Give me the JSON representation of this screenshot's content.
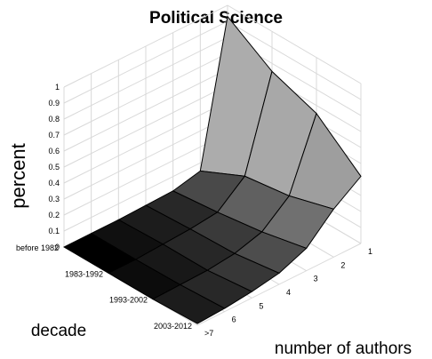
{
  "chart_data": {
    "type": "surface",
    "title": "Political Science",
    "zlabel": "percent",
    "ylabel": "decade",
    "xlabel": "number of authors",
    "decades": [
      "before 1982",
      "1983-1992",
      "1993-2002",
      "2003-2012"
    ],
    "authors": [
      "1",
      "2",
      "3",
      "4",
      "5",
      "6",
      ">7"
    ],
    "z_ticks": [
      "0",
      "0.1",
      "0.2",
      "0.3",
      "0.4",
      "0.5",
      "0.6",
      "0.7",
      "0.8",
      "0.9",
      "1"
    ],
    "zlim": [
      0,
      1
    ],
    "grid": true,
    "values": [
      [
        0.93,
        0.05,
        0.01,
        0.005,
        0.0,
        0.0,
        0.0
      ],
      [
        0.75,
        0.18,
        0.04,
        0.02,
        0.01,
        0.0,
        0.0
      ],
      [
        0.65,
        0.22,
        0.08,
        0.03,
        0.01,
        0.005,
        0.0
      ],
      [
        0.42,
        0.3,
        0.14,
        0.07,
        0.04,
        0.02,
        0.01
      ]
    ],
    "colors": {
      "high": "#f0f0f0",
      "low": "#000000",
      "edge": "#000000",
      "grid": "#d8d8d8"
    }
  }
}
